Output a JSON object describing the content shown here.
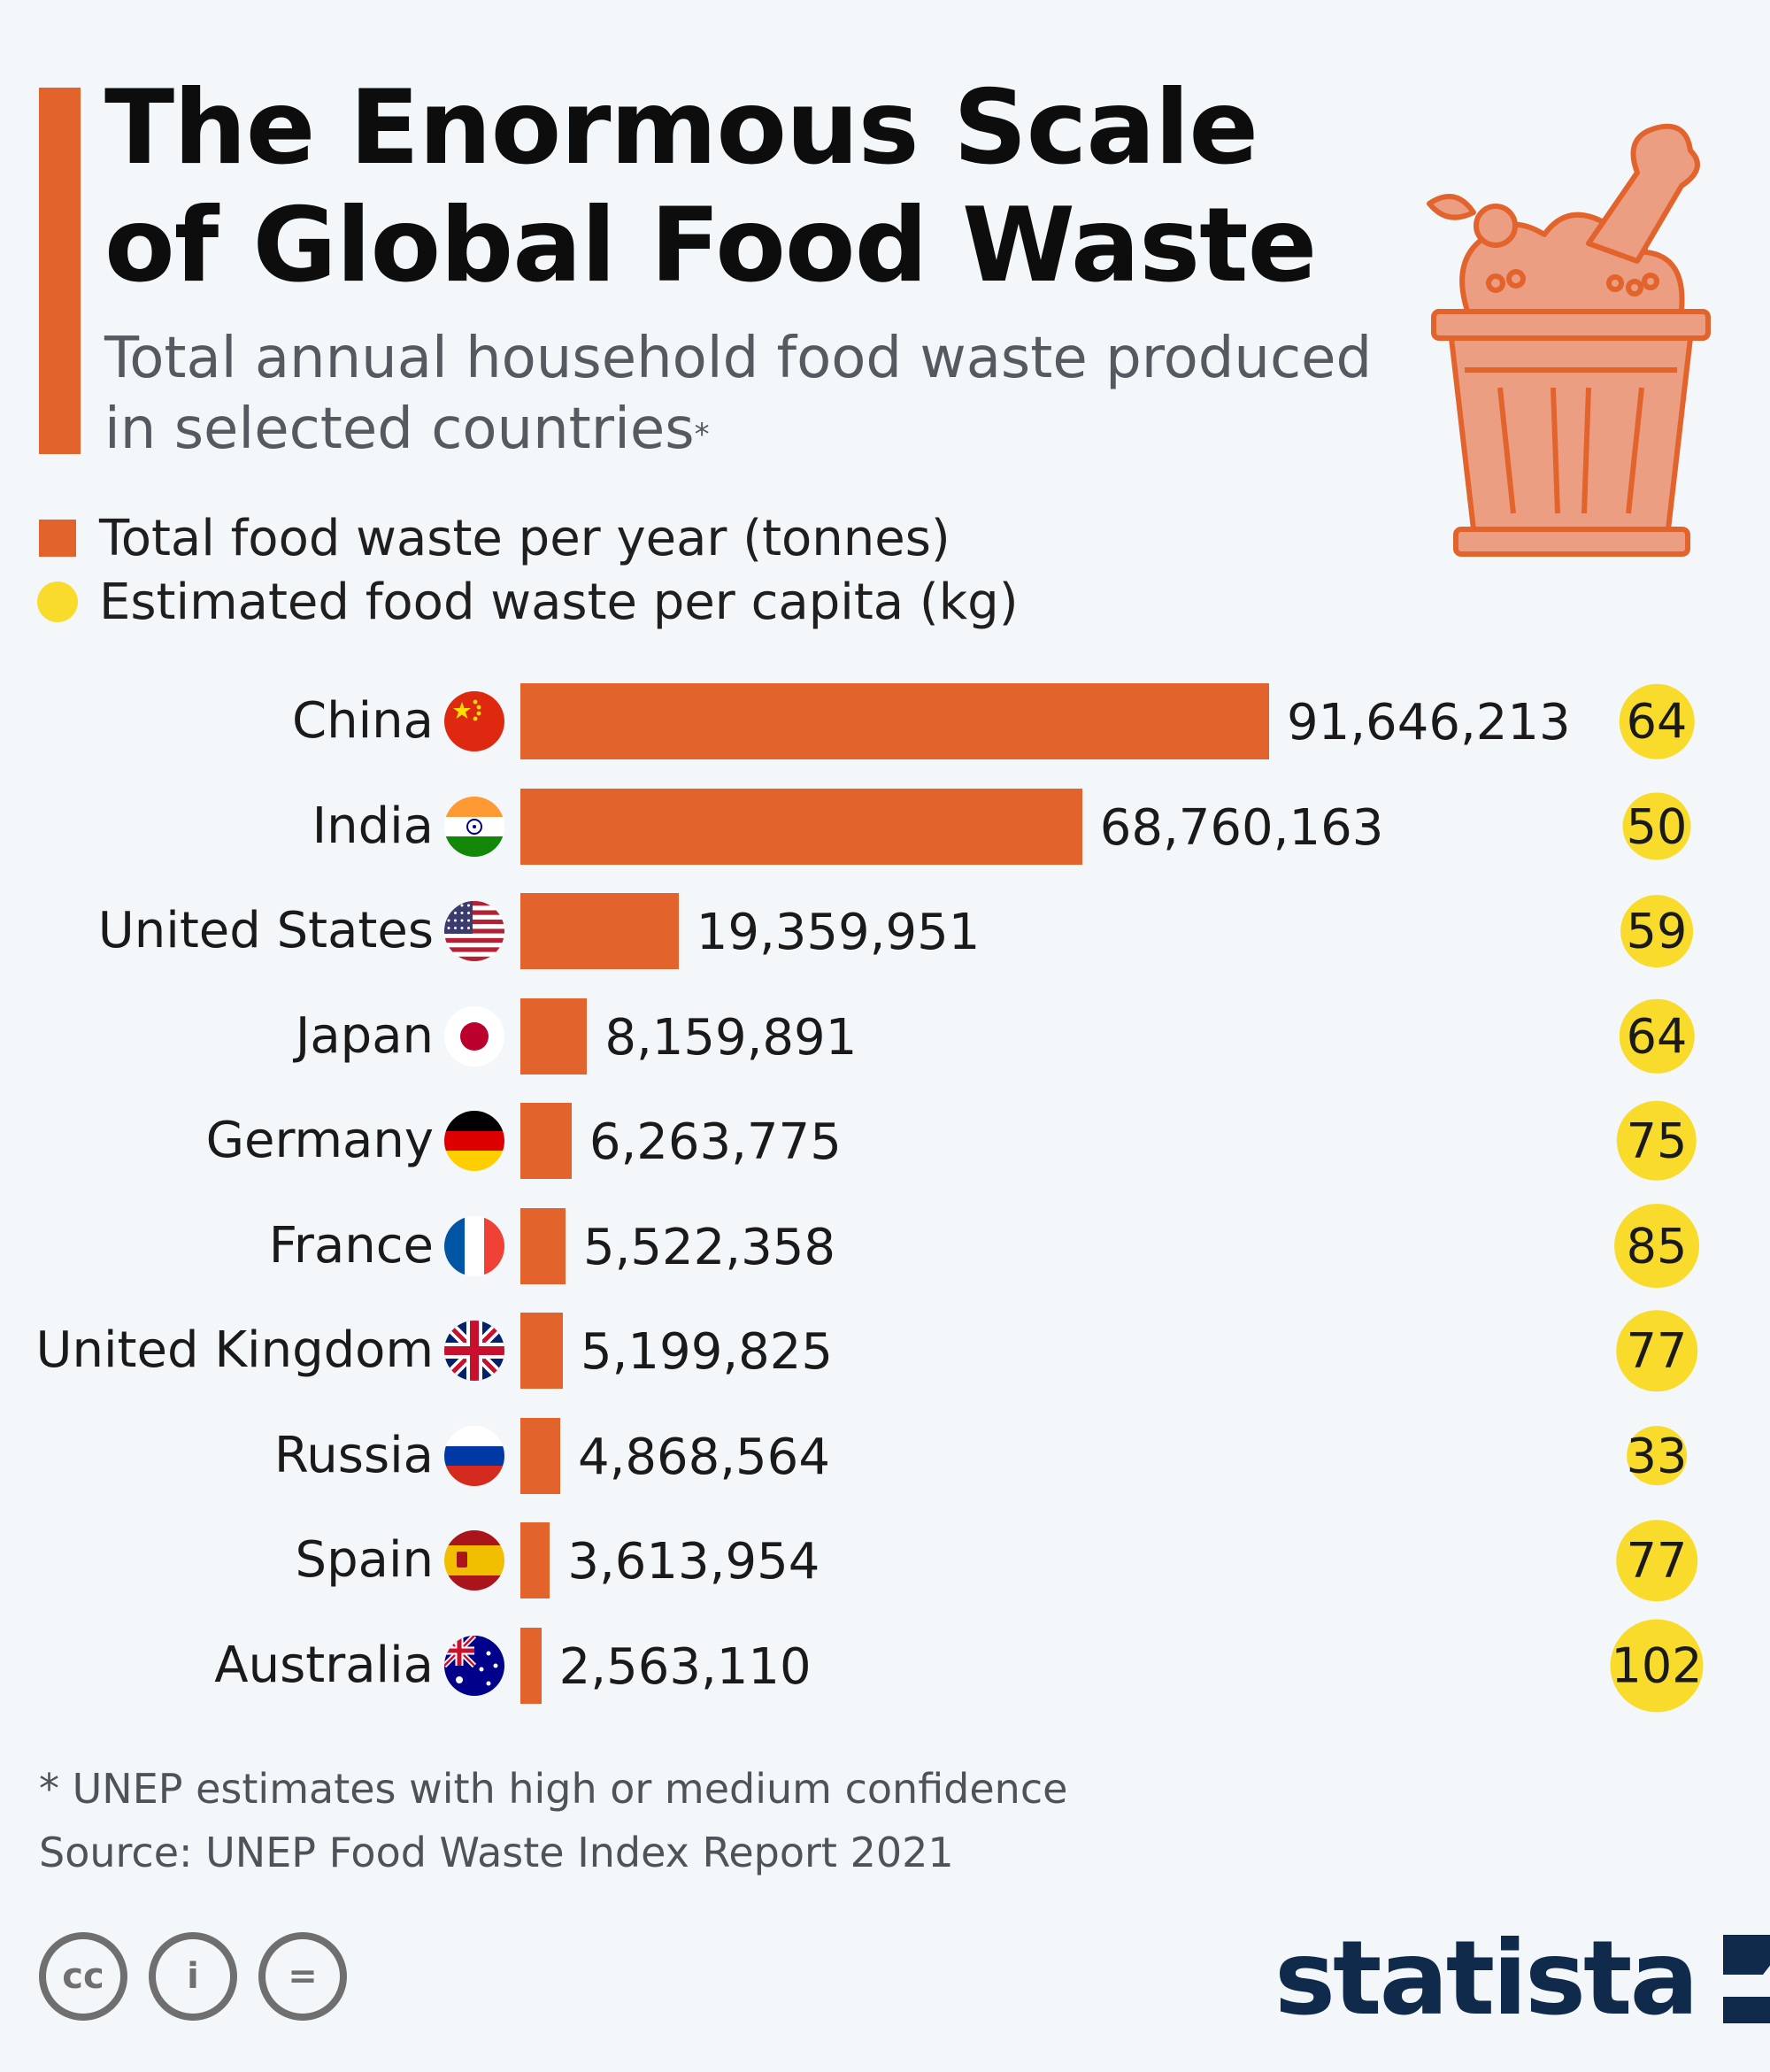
{
  "header": {
    "title": "The Enormous Scale of Global Food Waste",
    "subtitle": "Total annual household food waste produced in selected countries",
    "subtitle_marker": "*"
  },
  "legend": {
    "total_label": "Total food waste per year (tonnes)",
    "capita_label": "Estimated food waste per capita (kg)"
  },
  "colors": {
    "bar": "#e2642c",
    "dot": "#f9dc2b",
    "accent": "#e2642c",
    "brand": "#0f2a4a"
  },
  "chart_data": {
    "type": "bar",
    "orientation": "horizontal",
    "categories": [
      "China",
      "India",
      "United States",
      "Japan",
      "Germany",
      "France",
      "United Kingdom",
      "Russia",
      "Spain",
      "Australia"
    ],
    "series": [
      {
        "name": "Total food waste per year (tonnes)",
        "values": [
          91646213,
          68760163,
          19359951,
          8159891,
          6263775,
          5522358,
          5199825,
          4868564,
          3613954,
          2563110
        ],
        "labels": [
          "91,646,213",
          "68,760,163",
          "19,359,951",
          "8,159,891",
          "6,263,775",
          "5,522,358",
          "5,199,825",
          "4,868,564",
          "3,613,954",
          "2,563,110"
        ]
      },
      {
        "name": "Estimated food waste per capita (kg)",
        "values": [
          64,
          50,
          59,
          64,
          75,
          85,
          77,
          33,
          77,
          102
        ],
        "labels": [
          "64",
          "50",
          "59",
          "64",
          "75",
          "85",
          "77",
          "33",
          "77",
          "102"
        ]
      }
    ],
    "flags": [
      "china-flag-icon",
      "india-flag-icon",
      "united-states-flag-icon",
      "japan-flag-icon",
      "germany-flag-icon",
      "france-flag-icon",
      "united-kingdom-flag-icon",
      "russia-flag-icon",
      "spain-flag-icon",
      "australia-flag-icon"
    ],
    "legend_position": "top-left"
  },
  "footer": {
    "note": "* UNEP estimates with high or medium confidence",
    "source": "Source: UNEP Food Waste Index Report 2021",
    "license_icons": [
      "cc-icon",
      "attribution-icon",
      "no-derivatives-icon"
    ],
    "license_glyphs": [
      "cc",
      "i",
      "="
    ],
    "brand": "statista"
  }
}
